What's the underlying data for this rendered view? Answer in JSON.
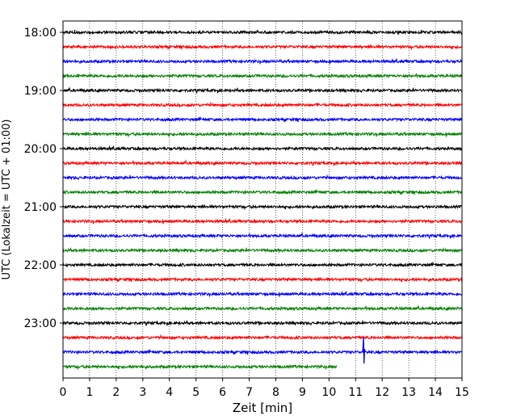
{
  "chart_data": {
    "type": "line",
    "subtype": "helicorder-seismogram",
    "title": "",
    "xlabel": "Zeit  [min]",
    "ylabel": "UTC (Lokalzeit = UTC + 01:00)",
    "xlim": [
      0,
      15
    ],
    "x_ticks": [
      "0",
      "1",
      "2",
      "3",
      "4",
      "5",
      "6",
      "7",
      "8",
      "9",
      "10",
      "11",
      "12",
      "13",
      "14",
      "15"
    ],
    "y_tick_labels": [
      "18:00",
      "19:00",
      "20:00",
      "21:00",
      "22:00",
      "23:00"
    ],
    "grid": "vertical dotted at each minute",
    "line_colors": [
      "#000000",
      "#ff0000",
      "#0000ff",
      "#008000"
    ],
    "rows": [
      {
        "start": "18:00",
        "end_min": 15
      },
      {
        "start": "18:15",
        "end_min": 15
      },
      {
        "start": "18:30",
        "end_min": 15
      },
      {
        "start": "18:45",
        "end_min": 15
      },
      {
        "start": "19:00",
        "end_min": 15
      },
      {
        "start": "19:15",
        "end_min": 15
      },
      {
        "start": "19:30",
        "end_min": 15
      },
      {
        "start": "19:45",
        "end_min": 15
      },
      {
        "start": "20:00",
        "end_min": 15
      },
      {
        "start": "20:15",
        "end_min": 15
      },
      {
        "start": "20:30",
        "end_min": 15
      },
      {
        "start": "20:45",
        "end_min": 15
      },
      {
        "start": "21:00",
        "end_min": 15
      },
      {
        "start": "21:15",
        "end_min": 15
      },
      {
        "start": "21:30",
        "end_min": 15
      },
      {
        "start": "21:45",
        "end_min": 15
      },
      {
        "start": "22:00",
        "end_min": 15
      },
      {
        "start": "22:15",
        "end_min": 15
      },
      {
        "start": "22:30",
        "end_min": 15
      },
      {
        "start": "22:45",
        "end_min": 15
      },
      {
        "start": "23:00",
        "end_min": 15
      },
      {
        "start": "23:15",
        "end_min": 15
      },
      {
        "start": "23:30",
        "end_min": 15
      },
      {
        "start": "23:45",
        "end_min": 10.3
      }
    ],
    "events": [
      {
        "row_start": "23:30",
        "minute": 11.3,
        "description": "spike"
      }
    ]
  }
}
